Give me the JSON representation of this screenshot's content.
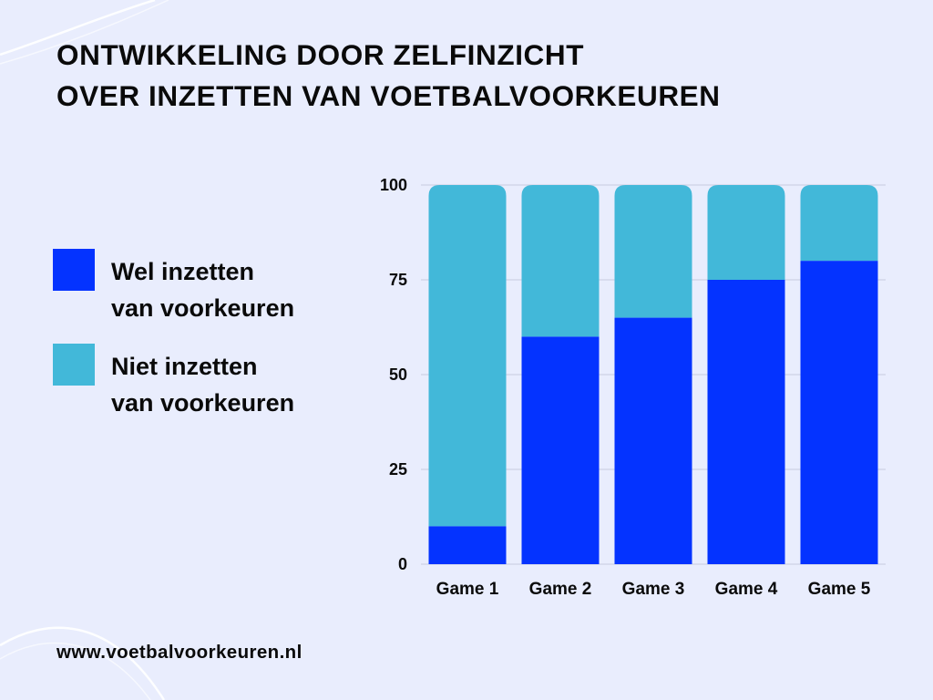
{
  "title_lines": [
    "ONTWIKKELING DOOR ZELFINZICHT",
    "OVER INZETTEN VAN VOETBALVOORKEUREN"
  ],
  "legend": [
    {
      "label": "Wel inzetten\nvan voorkeuren",
      "color": "#0433ff"
    },
    {
      "label": "Niet inzetten\nvan voorkeuren",
      "color": "#42b8d9"
    }
  ],
  "footer": "www.voetbalvoorkeuren.nl",
  "colors": {
    "background": "#e9edfd",
    "wel": "#0433ff",
    "niet": "#42b8d9",
    "grid": "#c8cce0"
  },
  "chart_data": {
    "type": "bar",
    "stacked": true,
    "categories": [
      "Game 1",
      "Game 2",
      "Game 3",
      "Game 4",
      "Game 5"
    ],
    "series": [
      {
        "name": "Wel inzetten van voorkeuren",
        "values": [
          10,
          60,
          65,
          75,
          80
        ]
      },
      {
        "name": "Niet inzetten van voorkeuren",
        "values": [
          90,
          40,
          35,
          25,
          20
        ]
      }
    ],
    "ylim": [
      0,
      100
    ],
    "yticks": [
      0,
      25,
      50,
      75,
      100
    ],
    "grid": true,
    "legend_position": "left"
  }
}
